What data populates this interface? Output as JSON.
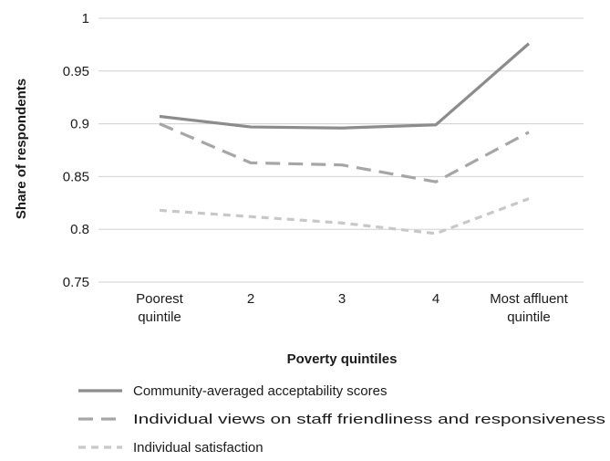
{
  "chart_data": {
    "type": "line",
    "title": "",
    "xlabel": "Poverty quintiles",
    "ylabel": "Share of respondents",
    "ylim": [
      0.75,
      1
    ],
    "yticks": [
      "0.75",
      "0.8",
      "0.85",
      "0.9",
      "0.95",
      "1"
    ],
    "grid": "horizontal",
    "categories": [
      [
        "Poorest",
        "quintile"
      ],
      [
        "2"
      ],
      [
        "3"
      ],
      [
        "4"
      ],
      [
        "Most affluent",
        "quintile"
      ]
    ],
    "series": [
      {
        "name": "Community-averaged acceptability scores",
        "values": [
          0.907,
          0.897,
          0.896,
          0.899,
          0.976
        ],
        "style": "solid",
        "color": "#8c8c8c"
      },
      {
        "name": "Individual views on staff friendliness and responsiveness",
        "values": [
          0.9,
          0.863,
          0.861,
          0.845,
          0.892
        ],
        "style": "dashed",
        "color": "#a6a6a6"
      },
      {
        "name": "Individual satisfaction",
        "values": [
          0.818,
          0.812,
          0.806,
          0.796,
          0.829
        ],
        "style": "dotted",
        "color": "#c8c8c8"
      }
    ],
    "legend_position": "bottom"
  }
}
